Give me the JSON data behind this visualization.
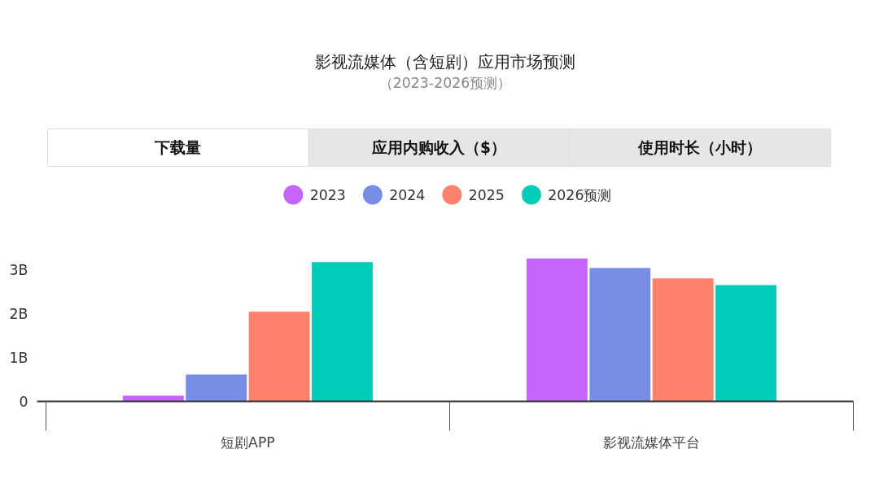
{
  "chart_data": {
    "type": "bar",
    "title": "影视流媒体（含短剧）应用市场预测",
    "subtitle": "（2023-2026预测）",
    "annotations": [
      "下载量",
      "应用内购收入（$）",
      "使用时长（小时）"
    ],
    "categories": [
      "短剧APP",
      "影视流媒体平台"
    ],
    "series": [
      {
        "name": "2023",
        "color": "#c466fb",
        "values": [
          0.13,
          3.26
        ]
      },
      {
        "name": "2024",
        "color": "#788de6",
        "values": [
          0.61,
          3.04
        ]
      },
      {
        "name": "2025",
        "color": "#ff836c",
        "values": [
          2.04,
          2.8
        ]
      },
      {
        "name": "2026预测",
        "color": "#00cdb8",
        "values": [
          3.17,
          2.65
        ]
      }
    ],
    "ylim": [
      0,
      3.26
    ],
    "yticks": [
      {
        "value": 0,
        "label": "0"
      },
      {
        "value": 1,
        "label": "1B"
      },
      {
        "value": 2,
        "label": "2B"
      },
      {
        "value": 3,
        "label": "3B"
      }
    ],
    "grid": false,
    "legend": "top"
  }
}
